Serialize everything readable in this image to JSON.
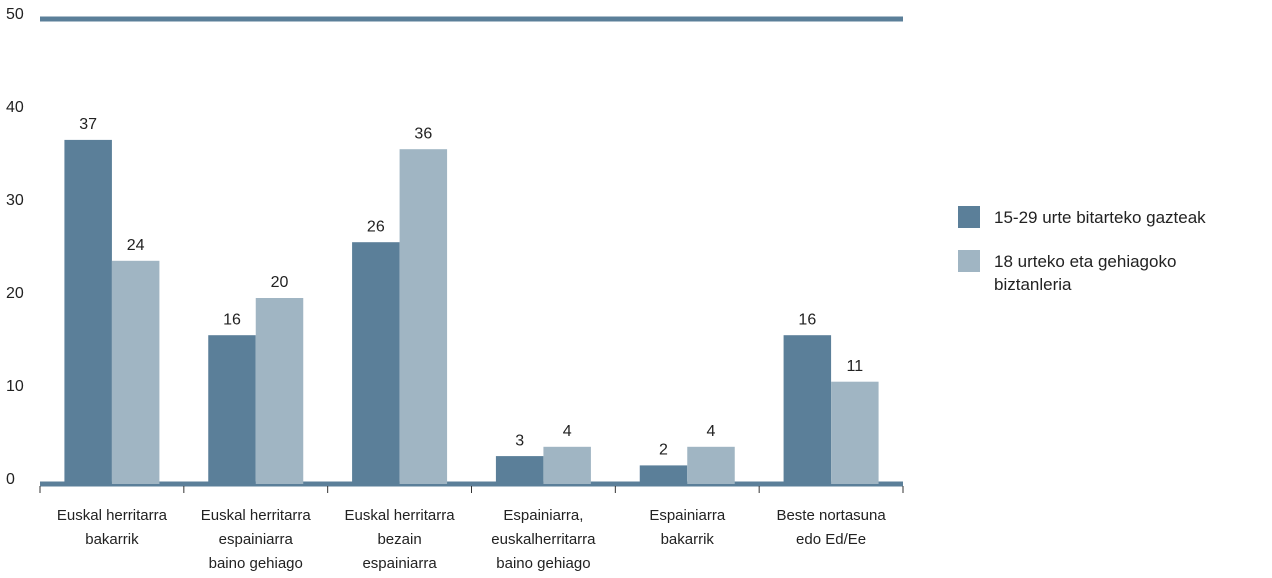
{
  "chart_data": {
    "type": "bar",
    "categories": [
      [
        "Euskal herritarra",
        "bakarrik"
      ],
      [
        "Euskal herritarra",
        "espainiarra",
        "baino gehiago"
      ],
      [
        "Euskal herritarra",
        "bezain",
        "espainiarra"
      ],
      [
        "Espainiarra,",
        "euskalherritarra",
        "baino gehiago"
      ],
      [
        "Espainiarra",
        "bakarrik"
      ],
      [
        "Beste nortasuna",
        "edo Ed/Ee"
      ]
    ],
    "series": [
      {
        "name": "15-29 urte bitarteko gazteak",
        "color": "#5b7f99",
        "values": [
          37,
          16,
          26,
          3,
          2,
          16
        ]
      },
      {
        "name": "18 urteko eta gehiagoko biztanleria",
        "color": "#a0b5c3",
        "values": [
          24,
          20,
          36,
          4,
          4,
          11
        ]
      }
    ],
    "ylim": [
      0,
      50
    ],
    "yticks": [
      0,
      10,
      20,
      30,
      40,
      50
    ],
    "grid": false,
    "legend": "right"
  }
}
